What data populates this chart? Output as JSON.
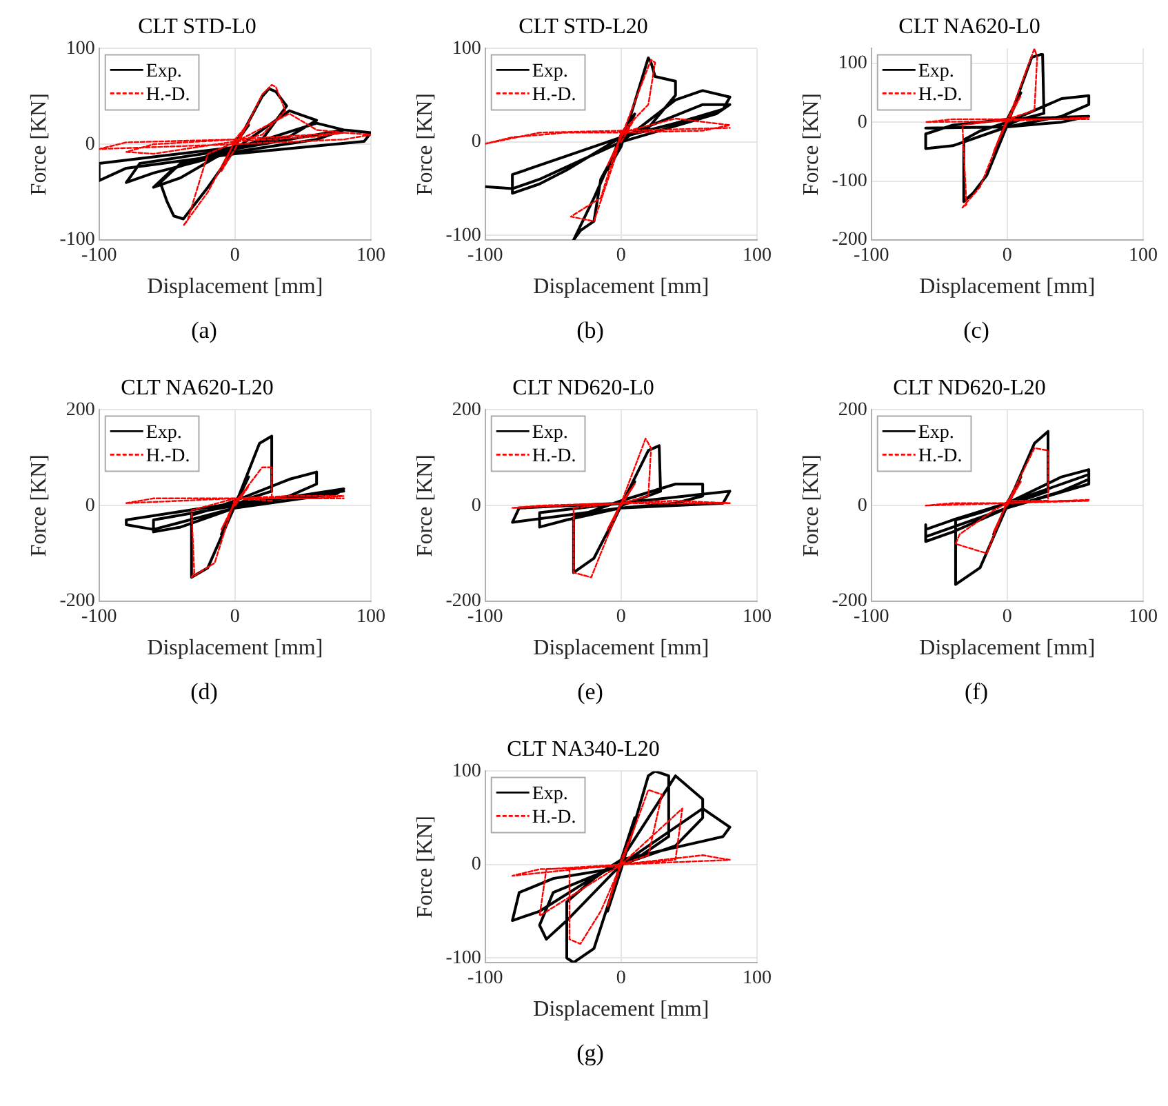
{
  "chart_data": [
    {
      "type": "line",
      "title": "CLT STD-L0",
      "xlabel": "Displacement [mm]",
      "ylabel": "Force [KN]",
      "annotations": [
        "(a)"
      ],
      "xlim": [
        -100,
        100
      ],
      "xticks": [
        -100,
        0,
        100
      ],
      "ylim": [
        -100,
        100
      ],
      "yticks": [
        -100,
        0,
        100
      ],
      "grid": true,
      "legend": "top left",
      "marker": "none",
      "series": [
        {
          "name": "Exp.",
          "color": "#000000",
          "line_style": "solid",
          "x": [
            0,
            10,
            0,
            -10,
            0,
            20,
            25,
            30,
            38,
            20,
            0,
            -20,
            -38,
            -45,
            -50,
            -55,
            -40,
            0,
            40,
            50,
            60,
            40,
            0,
            -40,
            -60,
            -45,
            0,
            60,
            80,
            60,
            0,
            -60,
            -80,
            -70,
            0,
            80,
            100,
            95,
            0,
            -80,
            -100,
            -100,
            0
          ],
          "values": [
            0,
            20,
            2,
            -25,
            -3,
            50,
            58,
            55,
            40,
            5,
            -5,
            -45,
            -78,
            -75,
            -60,
            -40,
            -20,
            -5,
            35,
            30,
            25,
            8,
            -2,
            -35,
            -45,
            -25,
            -5,
            22,
            15,
            5,
            -8,
            -30,
            -40,
            -20,
            -5,
            15,
            12,
            3,
            -10,
            -25,
            -38,
            -20,
            -3
          ]
        },
        {
          "name": "H.-D.",
          "color": "#ff0000",
          "line_style": "dashed",
          "x": [
            0,
            10,
            0,
            -10,
            0,
            20,
            27,
            30,
            37,
            20,
            0,
            -20,
            -38,
            -35,
            -20,
            0,
            40,
            60,
            80,
            60,
            0,
            -60,
            -80,
            -60,
            0,
            80,
            100,
            80,
            0,
            -100,
            -80,
            0
          ],
          "values": [
            0,
            22,
            5,
            -28,
            -5,
            52,
            62,
            60,
            35,
            10,
            3,
            -50,
            -85,
            -80,
            -10,
            2,
            32,
            15,
            12,
            8,
            3,
            -10,
            -8,
            0,
            5,
            12,
            10,
            5,
            0,
            -5,
            2,
            5
          ]
        }
      ]
    },
    {
      "type": "line",
      "title": "CLT STD-L20",
      "xlabel": "Displacement [mm]",
      "ylabel": "Force [KN]",
      "annotations": [
        "(b)"
      ],
      "xlim": [
        -100,
        100
      ],
      "xticks": [
        -100,
        0,
        100
      ],
      "ylim": [
        -105,
        100
      ],
      "yticks": [
        -100,
        0,
        100
      ],
      "grid": true,
      "legend": "top left",
      "marker": "none",
      "series": [
        {
          "name": "Exp.",
          "color": "#000000",
          "line_style": "solid",
          "x": [
            0,
            10,
            0,
            -10,
            0,
            20,
            22,
            25,
            40,
            40,
            20,
            0,
            -20,
            -35,
            -30,
            -20,
            -15,
            0,
            40,
            60,
            80,
            75,
            40,
            0,
            -40,
            -60,
            -80,
            -80,
            -40,
            0,
            60,
            80,
            70,
            0,
            -60,
            -80,
            -100
          ],
          "values": [
            0,
            30,
            8,
            -30,
            -5,
            90,
            85,
            70,
            65,
            50,
            15,
            5,
            -60,
            -105,
            -95,
            -85,
            -40,
            0,
            45,
            55,
            48,
            35,
            20,
            5,
            -30,
            -45,
            -55,
            -35,
            -15,
            5,
            40,
            40,
            30,
            0,
            -40,
            -50,
            -48
          ]
        },
        {
          "name": "H.-D.",
          "color": "#ff0000",
          "line_style": "dashed",
          "x": [
            0,
            10,
            0,
            -10,
            0,
            22,
            25,
            20,
            0,
            -15,
            -37,
            -20,
            -5,
            0,
            40,
            80,
            60,
            0,
            -40,
            -80,
            -100,
            -60,
            0,
            80
          ],
          "values": [
            0,
            25,
            5,
            -25,
            5,
            88,
            85,
            40,
            10,
            -60,
            -80,
            -85,
            -20,
            10,
            25,
            18,
            12,
            10,
            10,
            5,
            -2,
            10,
            12,
            15
          ]
        }
      ]
    },
    {
      "type": "line",
      "title": "CLT NA620-L0",
      "xlabel": "Displacement [mm]",
      "ylabel": "Force [KN]",
      "annotations": [
        "(c)"
      ],
      "xlim": [
        -100,
        100
      ],
      "xticks": [
        -100,
        0,
        100
      ],
      "ylim": [
        -200,
        125
      ],
      "yticks": [
        -200,
        -100,
        0,
        100
      ],
      "grid": true,
      "legend": "top left",
      "marker": "none",
      "series": [
        {
          "name": "Exp.",
          "color": "#000000",
          "line_style": "solid",
          "x": [
            0,
            10,
            0,
            -10,
            0,
            18,
            25,
            26,
            27,
            10,
            0,
            -15,
            -25,
            -32,
            -32,
            -20,
            0,
            40,
            60,
            60,
            40,
            0,
            -40,
            -60,
            -60,
            -40,
            0,
            60,
            40,
            0,
            -60
          ],
          "values": [
            0,
            50,
            5,
            -55,
            -5,
            110,
            115,
            115,
            15,
            5,
            -5,
            -90,
            -120,
            -135,
            -30,
            -15,
            0,
            40,
            45,
            30,
            10,
            -8,
            -40,
            -45,
            -20,
            -5,
            5,
            10,
            0,
            -8,
            -10
          ]
        },
        {
          "name": "H.-D.",
          "color": "#ff0000",
          "line_style": "dashed",
          "x": [
            0,
            10,
            0,
            -10,
            0,
            20,
            22,
            20,
            0,
            -20,
            -33,
            -30,
            -33,
            0,
            40,
            60,
            0,
            -60,
            -40,
            0,
            60
          ],
          "values": [
            0,
            45,
            5,
            -50,
            0,
            125,
            110,
            20,
            5,
            -110,
            -145,
            -140,
            -5,
            5,
            5,
            8,
            2,
            0,
            5,
            5,
            5
          ]
        }
      ]
    },
    {
      "type": "line",
      "title": "CLT NA620-L20",
      "xlabel": "Displacement [mm]",
      "ylabel": "Force [KN]",
      "annotations": [
        "(d)"
      ],
      "xlim": [
        -100,
        100
      ],
      "xticks": [
        -100,
        0,
        100
      ],
      "ylim": [
        -200,
        200
      ],
      "yticks": [
        -200,
        0,
        200
      ],
      "grid": true,
      "legend": "top left",
      "marker": "none",
      "series": [
        {
          "name": "Exp.",
          "color": "#000000",
          "line_style": "solid",
          "x": [
            0,
            10,
            0,
            -10,
            0,
            18,
            27,
            27,
            10,
            0,
            -20,
            -32,
            -32,
            -20,
            0,
            40,
            60,
            60,
            40,
            0,
            -40,
            -60,
            -60,
            0,
            80,
            75,
            0,
            -60,
            -80,
            -80,
            0,
            80
          ],
          "values": [
            0,
            60,
            5,
            -60,
            0,
            130,
            145,
            30,
            15,
            0,
            -130,
            -150,
            -20,
            -10,
            10,
            55,
            70,
            45,
            20,
            -5,
            -45,
            -55,
            -30,
            0,
            35,
            25,
            -5,
            -50,
            -40,
            -30,
            5,
            30
          ]
        },
        {
          "name": "H.-D.",
          "color": "#ff0000",
          "line_style": "dashed",
          "x": [
            0,
            10,
            0,
            -10,
            0,
            20,
            27,
            27,
            0,
            -15,
            -32,
            -30,
            -32,
            0,
            40,
            80,
            60,
            0,
            -40,
            -80,
            -60,
            0,
            80
          ],
          "values": [
            0,
            40,
            8,
            -50,
            5,
            80,
            80,
            10,
            15,
            -120,
            -150,
            -140,
            -10,
            15,
            20,
            20,
            15,
            15,
            10,
            5,
            15,
            15,
            15
          ]
        }
      ]
    },
    {
      "type": "line",
      "title": "CLT ND620-L0",
      "xlabel": "Displacement [mm]",
      "ylabel": "Force [KN]",
      "annotations": [
        "(e)"
      ],
      "xlim": [
        -100,
        100
      ],
      "xticks": [
        -100,
        0,
        100
      ],
      "ylim": [
        -200,
        200
      ],
      "yticks": [
        -200,
        0,
        200
      ],
      "grid": true,
      "legend": "top left",
      "marker": "none",
      "series": [
        {
          "name": "Exp.",
          "color": "#000000",
          "line_style": "solid",
          "x": [
            0,
            10,
            0,
            -10,
            0,
            20,
            28,
            29,
            10,
            0,
            -20,
            -35,
            -35,
            -20,
            0,
            40,
            60,
            60,
            40,
            0,
            -40,
            -60,
            -60,
            0,
            80,
            75,
            0,
            -80,
            -75,
            0
          ],
          "values": [
            0,
            50,
            5,
            -60,
            0,
            115,
            125,
            30,
            10,
            0,
            -110,
            -140,
            -25,
            -10,
            10,
            45,
            45,
            20,
            5,
            -5,
            -30,
            -45,
            -15,
            5,
            30,
            5,
            -5,
            -35,
            -5,
            5
          ]
        },
        {
          "name": "H.-D.",
          "color": "#ff0000",
          "line_style": "dashed",
          "x": [
            0,
            10,
            0,
            -10,
            0,
            18,
            22,
            20,
            0,
            -15,
            -22,
            -35,
            -35,
            0,
            40,
            80,
            60,
            0,
            -40,
            -80,
            -60,
            0
          ],
          "values": [
            0,
            45,
            5,
            -50,
            5,
            140,
            120,
            20,
            5,
            -100,
            -150,
            -140,
            -5,
            5,
            10,
            5,
            5,
            5,
            0,
            -5,
            0,
            5
          ]
        }
      ]
    },
    {
      "type": "line",
      "title": "CLT ND620-L20",
      "xlabel": "Displacement [mm]",
      "ylabel": "Force [KN]",
      "annotations": [
        "(f)"
      ],
      "xlim": [
        -100,
        100
      ],
      "xticks": [
        -100,
        0,
        100
      ],
      "ylim": [
        -200,
        200
      ],
      "yticks": [
        -200,
        0,
        200
      ],
      "grid": true,
      "legend": "top left",
      "marker": "none",
      "series": [
        {
          "name": "Exp.",
          "color": "#000000",
          "line_style": "solid",
          "x": [
            0,
            10,
            0,
            -10,
            0,
            20,
            30,
            30,
            10,
            0,
            -20,
            -38,
            -38,
            -20,
            0,
            40,
            60,
            60,
            40,
            0,
            -40,
            -60,
            -60,
            -40,
            0,
            60,
            60,
            0,
            -60,
            -60
          ],
          "values": [
            0,
            60,
            5,
            -60,
            0,
            130,
            155,
            30,
            10,
            0,
            -130,
            -165,
            -30,
            -15,
            5,
            60,
            75,
            55,
            30,
            -5,
            -55,
            -75,
            -50,
            -30,
            5,
            65,
            45,
            -5,
            -65,
            -40
          ]
        },
        {
          "name": "H.-D.",
          "color": "#ff0000",
          "line_style": "dashed",
          "x": [
            0,
            10,
            0,
            -10,
            0,
            20,
            30,
            30,
            0,
            -15,
            -38,
            -35,
            -10,
            0,
            40,
            60,
            0,
            -60,
            -40,
            0,
            60
          ],
          "values": [
            0,
            50,
            5,
            -55,
            5,
            120,
            115,
            10,
            10,
            -100,
            -80,
            -60,
            -10,
            5,
            10,
            10,
            5,
            0,
            5,
            5,
            12
          ]
        }
      ]
    },
    {
      "type": "line",
      "title": "CLT NA340-L20",
      "xlabel": "Displacement [mm]",
      "ylabel": "Force [KN]",
      "annotations": [
        "(g)"
      ],
      "xlim": [
        -100,
        100
      ],
      "xticks": [
        -100,
        0,
        100
      ],
      "ylim": [
        -105,
        100
      ],
      "yticks": [
        -100,
        0,
        100
      ],
      "grid": true,
      "legend": "top left",
      "marker": "none",
      "series": [
        {
          "name": "Exp.",
          "color": "#000000",
          "line_style": "solid",
          "x": [
            0,
            10,
            0,
            -10,
            0,
            20,
            25,
            35,
            35,
            15,
            0,
            -20,
            -35,
            -40,
            -40,
            -20,
            0,
            40,
            60,
            60,
            40,
            0,
            -40,
            -55,
            -60,
            -50,
            0,
            60,
            80,
            75,
            0,
            -60,
            -80,
            -75,
            -50,
            0
          ],
          "values": [
            0,
            50,
            5,
            -50,
            -5,
            95,
            100,
            95,
            30,
            10,
            0,
            -90,
            -105,
            -100,
            -40,
            -15,
            5,
            95,
            70,
            50,
            20,
            0,
            -60,
            -80,
            -65,
            -30,
            0,
            60,
            40,
            30,
            5,
            -50,
            -60,
            -30,
            -15,
            -3
          ]
        },
        {
          "name": "H.-D.",
          "color": "#ff0000",
          "line_style": "dashed",
          "x": [
            0,
            10,
            0,
            -10,
            0,
            20,
            30,
            20,
            0,
            -15,
            -30,
            -38,
            -38,
            0,
            45,
            40,
            0,
            -60,
            -55,
            0,
            80,
            60,
            0,
            -80,
            -60,
            0
          ],
          "values": [
            0,
            40,
            5,
            -45,
            0,
            80,
            75,
            10,
            0,
            -50,
            -85,
            -80,
            -5,
            0,
            60,
            5,
            0,
            -55,
            -5,
            0,
            5,
            10,
            0,
            -12,
            -5,
            -2
          ]
        }
      ]
    }
  ]
}
